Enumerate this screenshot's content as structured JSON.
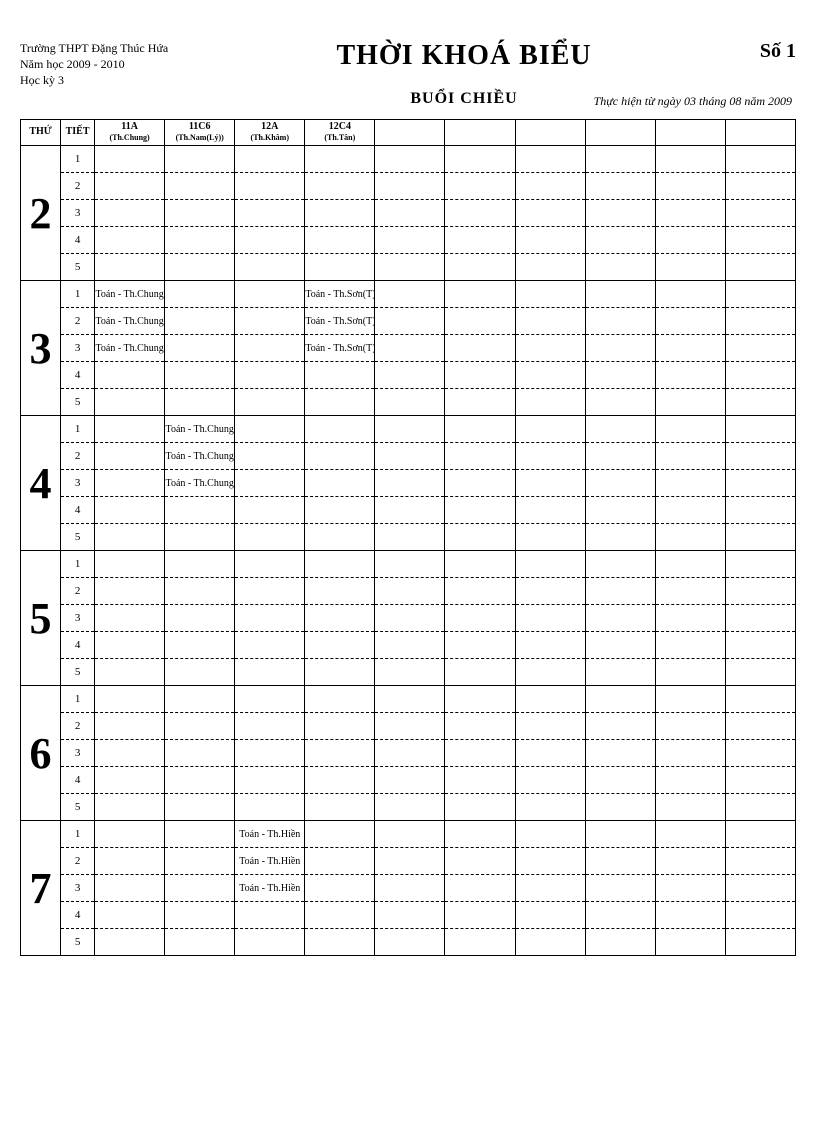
{
  "header": {
    "school": "Trường   THPT Đặng Thúc Hứa",
    "year": "Năm học 2009 - 2010",
    "semester": "Học kỳ 3",
    "title": "THỜI KHOÁ BIỂU",
    "session": "BUỔI CHIỀU",
    "number_label": "Số 1",
    "effective": "Thực hiện từ ngày 03 tháng 08 năm 2009"
  },
  "columns": {
    "thu": "THỨ",
    "tiet": "TIẾT",
    "classes": [
      {
        "name": "11A",
        "teacher": "(Th.Chung)"
      },
      {
        "name": "11C6",
        "teacher": "(Th.Nam(Lý))"
      },
      {
        "name": "12A",
        "teacher": "(Th.Khâm)"
      },
      {
        "name": "12C4",
        "teacher": "(Th.Tân)"
      }
    ],
    "blank_count": 6
  },
  "days": [
    {
      "thu": "2",
      "periods": [
        {
          "tiet": "1",
          "cells": [
            "",
            "",
            "",
            ""
          ]
        },
        {
          "tiet": "2",
          "cells": [
            "",
            "",
            "",
            ""
          ]
        },
        {
          "tiet": "3",
          "cells": [
            "",
            "",
            "",
            ""
          ]
        },
        {
          "tiet": "4",
          "cells": [
            "",
            "",
            "",
            ""
          ]
        },
        {
          "tiet": "5",
          "cells": [
            "",
            "",
            "",
            ""
          ]
        }
      ]
    },
    {
      "thu": "3",
      "periods": [
        {
          "tiet": "1",
          "cells": [
            "Toán - Th.Chung",
            "",
            "",
            "Toán - Th.Sơn(T)"
          ]
        },
        {
          "tiet": "2",
          "cells": [
            "Toán - Th.Chung",
            "",
            "",
            "Toán - Th.Sơn(T)"
          ]
        },
        {
          "tiet": "3",
          "cells": [
            "Toán - Th.Chung",
            "",
            "",
            "Toán - Th.Sơn(T)"
          ]
        },
        {
          "tiet": "4",
          "cells": [
            "",
            "",
            "",
            ""
          ]
        },
        {
          "tiet": "5",
          "cells": [
            "",
            "",
            "",
            ""
          ]
        }
      ]
    },
    {
      "thu": "4",
      "periods": [
        {
          "tiet": "1",
          "cells": [
            "",
            "Toán - Th.Chung",
            "",
            ""
          ]
        },
        {
          "tiet": "2",
          "cells": [
            "",
            "Toán - Th.Chung",
            "",
            ""
          ]
        },
        {
          "tiet": "3",
          "cells": [
            "",
            "Toán - Th.Chung",
            "",
            ""
          ]
        },
        {
          "tiet": "4",
          "cells": [
            "",
            "",
            "",
            ""
          ]
        },
        {
          "tiet": "5",
          "cells": [
            "",
            "",
            "",
            ""
          ]
        }
      ]
    },
    {
      "thu": "5",
      "periods": [
        {
          "tiet": "1",
          "cells": [
            "",
            "",
            "",
            ""
          ]
        },
        {
          "tiet": "2",
          "cells": [
            "",
            "",
            "",
            ""
          ]
        },
        {
          "tiet": "3",
          "cells": [
            "",
            "",
            "",
            ""
          ]
        },
        {
          "tiet": "4",
          "cells": [
            "",
            "",
            "",
            ""
          ]
        },
        {
          "tiet": "5",
          "cells": [
            "",
            "",
            "",
            ""
          ]
        }
      ]
    },
    {
      "thu": "6",
      "periods": [
        {
          "tiet": "1",
          "cells": [
            "",
            "",
            "",
            ""
          ]
        },
        {
          "tiet": "2",
          "cells": [
            "",
            "",
            "",
            ""
          ]
        },
        {
          "tiet": "3",
          "cells": [
            "",
            "",
            "",
            ""
          ]
        },
        {
          "tiet": "4",
          "cells": [
            "",
            "",
            "",
            ""
          ]
        },
        {
          "tiet": "5",
          "cells": [
            "",
            "",
            "",
            ""
          ]
        }
      ]
    },
    {
      "thu": "7",
      "periods": [
        {
          "tiet": "1",
          "cells": [
            "",
            "",
            "Toán - Th.Hiền",
            ""
          ]
        },
        {
          "tiet": "2",
          "cells": [
            "",
            "",
            "Toán - Th.Hiền",
            ""
          ]
        },
        {
          "tiet": "3",
          "cells": [
            "",
            "",
            "Toán - Th.Hiền",
            ""
          ]
        },
        {
          "tiet": "4",
          "cells": [
            "",
            "",
            "",
            ""
          ]
        },
        {
          "tiet": "5",
          "cells": [
            "",
            "",
            "",
            ""
          ]
        }
      ]
    }
  ]
}
